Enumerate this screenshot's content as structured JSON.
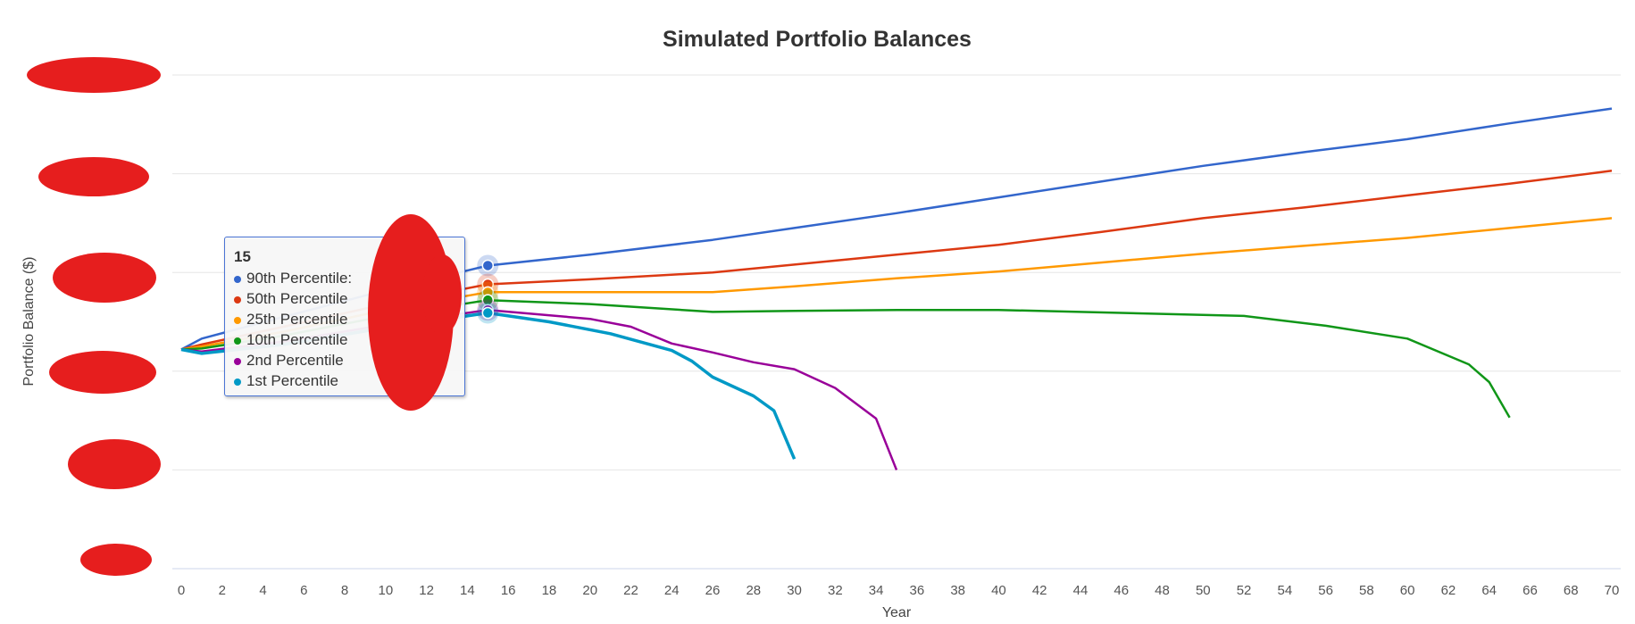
{
  "chart_data": {
    "type": "line",
    "title": "Simulated Portfolio Balances",
    "xlabel": "Year",
    "ylabel": "Portfolio Balance ($)",
    "xlim": [
      0,
      70
    ],
    "ylim_note": "y tick labels redacted; values in relative gridline units",
    "ylim": [
      0,
      5
    ],
    "x_ticks": [
      0,
      2,
      4,
      6,
      8,
      10,
      12,
      14,
      16,
      18,
      20,
      22,
      24,
      26,
      28,
      30,
      32,
      34,
      36,
      38,
      40,
      42,
      44,
      46,
      48,
      50,
      52,
      54,
      56,
      58,
      60,
      62,
      64,
      66,
      68,
      70
    ],
    "grid": true,
    "series": [
      {
        "name": "90th Percentile",
        "color": "#3366cc",
        "points": [
          [
            0,
            2.22
          ],
          [
            1,
            2.33
          ],
          [
            5,
            2.55
          ],
          [
            10,
            2.82
          ],
          [
            15,
            3.07
          ],
          [
            20,
            3.18
          ],
          [
            26,
            3.33
          ],
          [
            30,
            3.45
          ],
          [
            35,
            3.6
          ],
          [
            40,
            3.76
          ],
          [
            45,
            3.92
          ],
          [
            50,
            4.08
          ],
          [
            55,
            4.22
          ],
          [
            60,
            4.35
          ],
          [
            65,
            4.51
          ],
          [
            70,
            4.66
          ]
        ]
      },
      {
        "name": "50th Percentile",
        "color": "#dc3912",
        "points": [
          [
            0,
            2.22
          ],
          [
            1,
            2.27
          ],
          [
            5,
            2.45
          ],
          [
            10,
            2.68
          ],
          [
            15,
            2.88
          ],
          [
            20,
            2.93
          ],
          [
            26,
            3.0
          ],
          [
            30,
            3.08
          ],
          [
            35,
            3.18
          ],
          [
            40,
            3.28
          ],
          [
            45,
            3.41
          ],
          [
            50,
            3.55
          ],
          [
            55,
            3.66
          ],
          [
            60,
            3.78
          ],
          [
            65,
            3.9
          ],
          [
            70,
            4.03
          ]
        ]
      },
      {
        "name": "25th Percentile",
        "color": "#ff9900",
        "points": [
          [
            0,
            2.22
          ],
          [
            1,
            2.25
          ],
          [
            5,
            2.4
          ],
          [
            10,
            2.62
          ],
          [
            15,
            2.8
          ],
          [
            20,
            2.8
          ],
          [
            26,
            2.8
          ],
          [
            30,
            2.86
          ],
          [
            35,
            2.94
          ],
          [
            40,
            3.01
          ],
          [
            45,
            3.1
          ],
          [
            50,
            3.19
          ],
          [
            55,
            3.27
          ],
          [
            60,
            3.35
          ],
          [
            65,
            3.45
          ],
          [
            70,
            3.55
          ]
        ]
      },
      {
        "name": "10th Percentile",
        "color": "#109618",
        "points": [
          [
            0,
            2.22
          ],
          [
            1,
            2.23
          ],
          [
            5,
            2.36
          ],
          [
            10,
            2.56
          ],
          [
            15,
            2.72
          ],
          [
            20,
            2.68
          ],
          [
            26,
            2.6
          ],
          [
            30,
            2.61
          ],
          [
            35,
            2.62
          ],
          [
            40,
            2.62
          ],
          [
            46,
            2.59
          ],
          [
            52,
            2.56
          ],
          [
            56,
            2.46
          ],
          [
            60,
            2.33
          ],
          [
            63,
            2.07
          ],
          [
            64,
            1.89
          ],
          [
            65,
            1.53
          ]
        ]
      },
      {
        "name": "2nd Percentile",
        "color": "#990099",
        "points": [
          [
            0,
            2.22
          ],
          [
            1,
            2.2
          ],
          [
            5,
            2.3
          ],
          [
            10,
            2.47
          ],
          [
            15,
            2.62
          ],
          [
            20,
            2.53
          ],
          [
            22,
            2.45
          ],
          [
            24,
            2.28
          ],
          [
            26,
            2.19
          ],
          [
            28,
            2.09
          ],
          [
            30,
            2.02
          ],
          [
            32,
            1.83
          ],
          [
            34,
            1.52
          ],
          [
            35,
            1.0
          ]
        ]
      },
      {
        "name": "1st Percentile",
        "color": "#0099c6",
        "points": [
          [
            0,
            2.22
          ],
          [
            1,
            2.18
          ],
          [
            5,
            2.27
          ],
          [
            10,
            2.44
          ],
          [
            15,
            2.59
          ],
          [
            18,
            2.5
          ],
          [
            21,
            2.38
          ],
          [
            24,
            2.21
          ],
          [
            25,
            2.1
          ],
          [
            26,
            1.94
          ],
          [
            28,
            1.75
          ],
          [
            29,
            1.6
          ],
          [
            30,
            1.11
          ]
        ]
      }
    ],
    "tooltip": {
      "header": "15",
      "rows": [
        "90th Percentile:",
        "50th Percentile",
        "25th Percentile",
        "10th Percentile",
        "2nd Percentile",
        "1st Percentile"
      ],
      "x": 15
    },
    "legend": "none"
  }
}
